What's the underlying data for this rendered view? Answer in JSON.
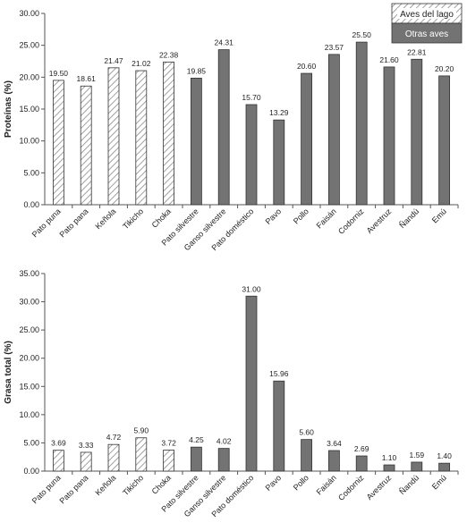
{
  "chart_data": [
    {
      "type": "bar",
      "ylabel": "Proteínas (%)",
      "ylim": [
        0,
        30
      ],
      "yticks": [
        "0.00",
        "5.00",
        "10.00",
        "15.00",
        "20.00",
        "25.00",
        "30.00"
      ],
      "categories": [
        "Pato puna",
        "Pato pana",
        "Keñola",
        "Tikicho",
        "Choka",
        "Pato silvestre",
        "Ganso silvestre",
        "Pato doméstico",
        "Pavo",
        "Pollo",
        "Faisán",
        "Codorniz",
        "Avestruz",
        "Ñandú",
        "Emú"
      ],
      "values": [
        19.5,
        18.61,
        21.47,
        21.02,
        22.38,
        19.85,
        24.31,
        15.7,
        13.29,
        20.6,
        23.57,
        25.5,
        21.6,
        22.81,
        20.2
      ],
      "value_labels": [
        "19.50",
        "18.61",
        "21.47",
        "21.02",
        "22.38",
        "19.85",
        "24.31",
        "15.70",
        "13.29",
        "20.60",
        "23.57",
        "25.50",
        "21.60",
        "22.81",
        "20.20"
      ],
      "groups": [
        "lake",
        "lake",
        "lake",
        "lake",
        "lake",
        "other",
        "other",
        "other",
        "other",
        "other",
        "other",
        "other",
        "other",
        "other",
        "other"
      ],
      "legend": [
        {
          "key": "lake",
          "label": "Aves del lago",
          "fill": "hatched"
        },
        {
          "key": "other",
          "label": "Otras aves",
          "fill": "#737373"
        }
      ],
      "legend_position": "top-right",
      "grid": false
    },
    {
      "type": "bar",
      "ylabel": "Grasa total (%)",
      "ylim": [
        0,
        35
      ],
      "yticks": [
        "0.00",
        "5.00",
        "10.00",
        "15.00",
        "20.00",
        "25.00",
        "30.00",
        "35.00"
      ],
      "categories": [
        "Pato puna",
        "Pato pana",
        "Keñola",
        "Tikicho",
        "Choka",
        "Pato silvestre",
        "Ganso silvestre",
        "Pato doméstico",
        "Pavo",
        "Pollo",
        "Faisán",
        "Codorniz",
        "Avestruz",
        "Ñandú",
        "Emú"
      ],
      "values": [
        3.69,
        3.33,
        4.72,
        5.9,
        3.72,
        4.25,
        4.02,
        31.0,
        15.96,
        5.6,
        3.64,
        2.69,
        1.1,
        1.59,
        1.4
      ],
      "value_labels": [
        "3.69",
        "3.33",
        "4.72",
        "5.90",
        "3.72",
        "4.25",
        "4.02",
        "31.00",
        "15.96",
        "5.60",
        "3.64",
        "2.69",
        "1.10",
        "1.59",
        "1.40"
      ],
      "groups": [
        "lake",
        "lake",
        "lake",
        "lake",
        "lake",
        "other",
        "other",
        "other",
        "other",
        "other",
        "other",
        "other",
        "other",
        "other",
        "other"
      ],
      "grid": false
    }
  ],
  "colors": {
    "other_fill": "#737373",
    "hatch_stroke": "#8a8a8a",
    "bar_outline": "#333333",
    "axis": "#555555",
    "text": "#222222",
    "legend_other_text": "#ffffff"
  }
}
